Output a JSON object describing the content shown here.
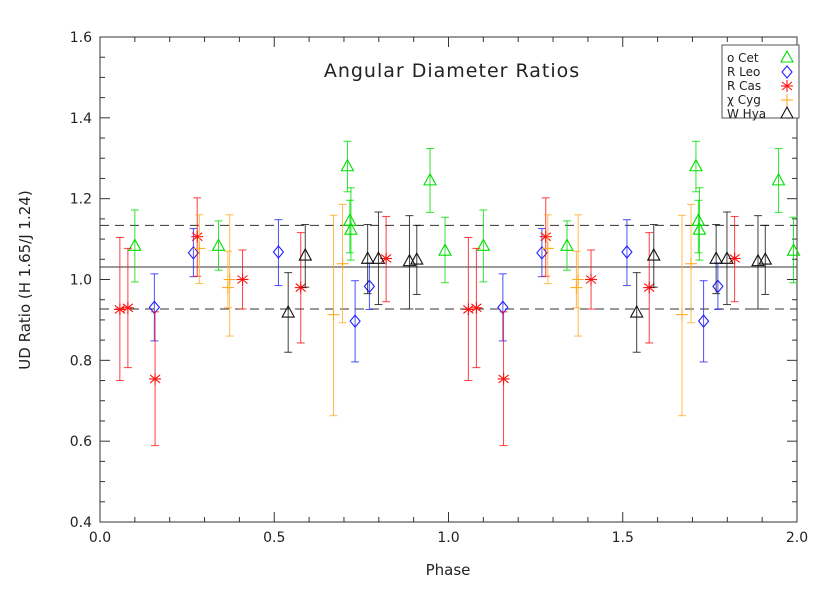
{
  "chart_data": {
    "type": "scatter",
    "title": "Angular Diameter Ratios",
    "xlabel": "Phase",
    "ylabel": "UD Ratio (H 1.65/J 1.24)",
    "xlim": [
      0.0,
      2.0
    ],
    "ylim": [
      0.4,
      1.6
    ],
    "xticks": [
      "0.0",
      "0.5",
      "1.0",
      "1.5",
      "2.0"
    ],
    "yticks": [
      "0.4",
      "0.6",
      "0.8",
      "1.0",
      "1.2",
      "1.4",
      "1.6"
    ],
    "grid": false,
    "legend_position": "top-right",
    "reference_lines": {
      "solid": 1.031,
      "dashed": [
        1.134,
        0.927
      ]
    },
    "point_format": [
      "phase",
      "ratio",
      "error_low",
      "error_high"
    ],
    "series": [
      {
        "name": "o Cet",
        "color": "#00dd00",
        "marker": "triangle",
        "points": [
          [
            0.1,
            1.082,
            0.994,
            1.172
          ],
          [
            0.34,
            1.082,
            1.023,
            1.145
          ],
          [
            0.71,
            1.279,
            1.217,
            1.342
          ],
          [
            0.717,
            1.144,
            1.066,
            1.196
          ],
          [
            0.72,
            1.122,
            1.048,
            1.227
          ],
          [
            0.947,
            1.244,
            1.166,
            1.324
          ],
          [
            0.99,
            1.07,
            0.992,
            1.154
          ],
          [
            1.1,
            1.082,
            0.994,
            1.172
          ],
          [
            1.34,
            1.082,
            1.023,
            1.145
          ],
          [
            1.71,
            1.279,
            1.217,
            1.342
          ],
          [
            1.717,
            1.144,
            1.066,
            1.196
          ],
          [
            1.72,
            1.122,
            1.048,
            1.227
          ],
          [
            1.947,
            1.244,
            1.166,
            1.324
          ],
          [
            1.99,
            1.07,
            0.992,
            1.154
          ]
        ]
      },
      {
        "name": "R Leo",
        "color": "#2222ff",
        "marker": "diamond",
        "points": [
          [
            0.156,
            0.931,
            0.848,
            1.014
          ],
          [
            0.268,
            1.066,
            1.007,
            1.126
          ],
          [
            0.512,
            1.068,
            0.985,
            1.148
          ],
          [
            0.732,
            0.897,
            0.796,
            0.997
          ],
          [
            0.773,
            0.983,
            0.926,
            1.041
          ],
          [
            1.156,
            0.931,
            0.848,
            1.014
          ],
          [
            1.268,
            1.066,
            1.007,
            1.126
          ],
          [
            1.512,
            1.068,
            0.985,
            1.148
          ],
          [
            1.732,
            0.897,
            0.796,
            0.997
          ],
          [
            1.773,
            0.983,
            0.926,
            1.041
          ]
        ]
      },
      {
        "name": "R Cas",
        "color": "#ff1111",
        "marker": "asterisk",
        "points": [
          [
            0.057,
            0.926,
            0.75,
            1.104
          ],
          [
            0.08,
            0.93,
            0.782,
            1.077
          ],
          [
            0.158,
            0.754,
            0.589,
            0.92
          ],
          [
            0.279,
            1.106,
            1.008,
            1.202
          ],
          [
            0.409,
            1.0,
            0.927,
            1.073
          ],
          [
            0.576,
            0.98,
            0.843,
            1.116
          ],
          [
            0.821,
            1.052,
            0.945,
            1.156
          ],
          [
            1.057,
            0.926,
            0.75,
            1.104
          ],
          [
            1.08,
            0.93,
            0.782,
            1.077
          ],
          [
            1.158,
            0.754,
            0.589,
            0.92
          ],
          [
            1.279,
            1.106,
            1.008,
            1.202
          ],
          [
            1.409,
            1.0,
            0.927,
            1.073
          ],
          [
            1.576,
            0.98,
            0.843,
            1.116
          ],
          [
            1.821,
            1.052,
            0.945,
            1.156
          ]
        ]
      },
      {
        "name": "χ Cyg",
        "color": "#ffaa22",
        "marker": "plus",
        "points": [
          [
            0.285,
            1.077,
            0.99,
            1.16
          ],
          [
            0.367,
            0.98,
            0.93,
            1.07
          ],
          [
            0.372,
            1.0,
            0.86,
            1.16
          ],
          [
            0.67,
            0.913,
            0.663,
            1.159
          ],
          [
            0.696,
            1.039,
            0.893,
            1.186
          ],
          [
            1.285,
            1.077,
            0.99,
            1.16
          ],
          [
            1.367,
            0.98,
            0.93,
            1.07
          ],
          [
            1.372,
            1.0,
            0.86,
            1.16
          ],
          [
            1.67,
            0.913,
            0.663,
            1.159
          ],
          [
            1.696,
            1.039,
            0.893,
            1.186
          ]
        ]
      },
      {
        "name": "W Hya",
        "color": "#111111",
        "marker": "triangle",
        "points": [
          [
            0.54,
            0.917,
            0.82,
            1.017
          ],
          [
            0.589,
            1.058,
            0.981,
            1.136
          ],
          [
            0.768,
            1.05,
            0.965,
            1.136
          ],
          [
            0.799,
            1.05,
            0.938,
            1.167
          ],
          [
            0.888,
            1.044,
            0.927,
            1.158
          ],
          [
            0.909,
            1.048,
            0.963,
            1.134
          ],
          [
            1.54,
            0.917,
            0.82,
            1.017
          ],
          [
            1.589,
            1.058,
            0.981,
            1.136
          ],
          [
            1.768,
            1.05,
            0.965,
            1.136
          ],
          [
            1.799,
            1.05,
            0.938,
            1.167
          ],
          [
            1.888,
            1.044,
            0.927,
            1.158
          ],
          [
            1.909,
            1.048,
            0.963,
            1.134
          ]
        ]
      }
    ]
  }
}
